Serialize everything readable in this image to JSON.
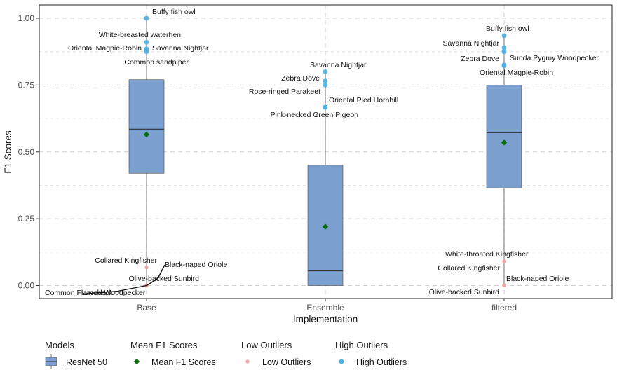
{
  "chart_data": {
    "type": "box",
    "xlabel": "Implementation",
    "ylabel": "F1 Scores",
    "ylim": [
      -0.04,
      1.04
    ],
    "y_ticks": [
      "0.00",
      "0.25",
      "0.50",
      "0.75",
      "1.00"
    ],
    "y_tick_values": [
      0,
      0.25,
      0.5,
      0.75,
      1.0
    ],
    "grid": "dashed",
    "categories": [
      "Base",
      "Ensemble",
      "filtered"
    ],
    "boxes": [
      {
        "category": "Base",
        "min": 0.0,
        "q1": 0.42,
        "median": 0.585,
        "q3": 0.77,
        "max": 1.0,
        "mean": 0.565
      },
      {
        "category": "Ensemble",
        "min": 0.0,
        "q1": 0.0,
        "median": 0.055,
        "q3": 0.45,
        "max": 0.8,
        "mean": 0.22
      },
      {
        "category": "filtered",
        "min": 0.0,
        "q1": 0.365,
        "median": 0.572,
        "q3": 0.75,
        "max": 0.935,
        "mean": 0.535
      }
    ],
    "high_outliers": [
      {
        "category": "Base",
        "y": 1.0,
        "label": "Buffy fish owl"
      },
      {
        "category": "Base",
        "y": 0.91,
        "label": "White-breasted waterhen"
      },
      {
        "category": "Base",
        "y": 0.885,
        "label": "Oriental Magpie-Robin"
      },
      {
        "category": "Base",
        "y": 0.885,
        "label": "Savanna Nightjar"
      },
      {
        "category": "Base",
        "y": 0.875,
        "label": "Common sandpiper"
      },
      {
        "category": "Ensemble",
        "y": 0.8,
        "label": "Savanna Nightjar"
      },
      {
        "category": "Ensemble",
        "y": 0.765,
        "label": "Zebra Dove"
      },
      {
        "category": "Ensemble",
        "y": 0.75,
        "label": "Rose-ringed Parakeet"
      },
      {
        "category": "Ensemble",
        "y": 0.667,
        "label": "Oriental Pied Hornbill"
      },
      {
        "category": "Ensemble",
        "y": 0.667,
        "label": "Pink-necked Green Pigeon"
      },
      {
        "category": "filtered",
        "y": 0.935,
        "label": "Buffy fish owl"
      },
      {
        "category": "filtered",
        "y": 0.89,
        "label": "Savanna Nightjar"
      },
      {
        "category": "filtered",
        "y": 0.875,
        "label": "Zebra Dove"
      },
      {
        "category": "filtered",
        "y": 0.825,
        "label": "Sunda Pygmy Woodpecker"
      },
      {
        "category": "filtered",
        "y": 0.822,
        "label": "Oriental Magpie-Robin"
      }
    ],
    "low_outliers": [
      {
        "category": "Base",
        "y": 0.068,
        "label": "Collared Kingfisher"
      },
      {
        "category": "Base",
        "y": 0.0,
        "label": "Black-naped Oriole"
      },
      {
        "category": "Base",
        "y": 0.0,
        "label": "Olive-backed Sunbird"
      },
      {
        "category": "Base",
        "y": 0.0,
        "label": "Common Flameback"
      },
      {
        "category": "Base",
        "y": 0.0,
        "label": "Laced Woodpecker"
      },
      {
        "category": "filtered",
        "y": 0.09,
        "label": "White-throated Kingfisher"
      },
      {
        "category": "filtered",
        "y": 0.09,
        "label": "Collared Kingfisher"
      },
      {
        "category": "filtered",
        "y": 0.0,
        "label": "Black-naped Oriole"
      },
      {
        "category": "filtered",
        "y": 0.0,
        "label": "Olive-backed Sunbird"
      }
    ],
    "colors": {
      "box": "#7b9fcf",
      "box_edge": "#4a4a4a",
      "mean": "#0a6b0a",
      "high": "#4aaee6",
      "low": "#f2a0a0",
      "grid": "#cfcfcf"
    },
    "legend": {
      "placement": "bottom",
      "groups": [
        {
          "title": "Models",
          "label": "ResNet 50",
          "kind": "box"
        },
        {
          "title": "Mean F1 Scores",
          "label": "Mean F1 Scores",
          "kind": "mean"
        },
        {
          "title": "Low Outliers",
          "label": "Low Outliers",
          "kind": "low"
        },
        {
          "title": "High Outliers",
          "label": "High Outliers",
          "kind": "high"
        }
      ]
    }
  }
}
